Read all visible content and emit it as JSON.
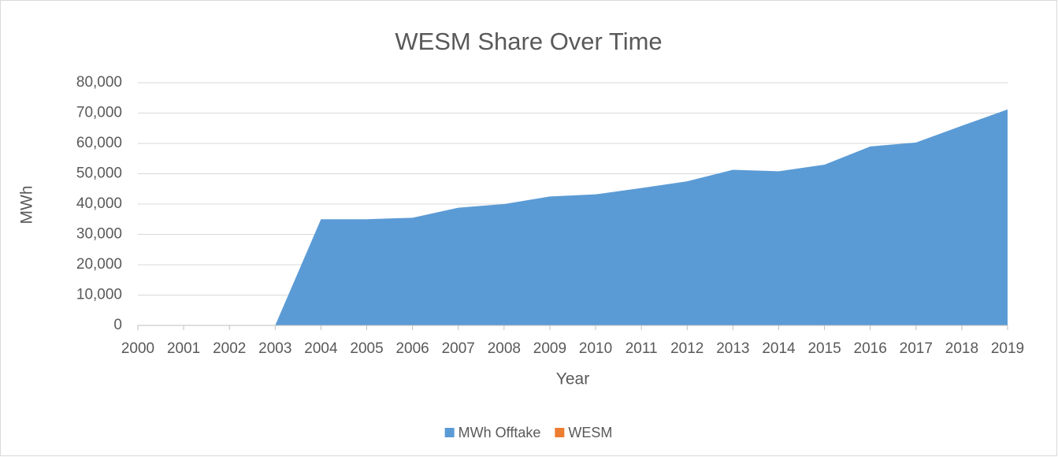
{
  "chart_data": {
    "type": "area",
    "stacked": true,
    "title": "WESM Share Over Time",
    "x_label": "Year",
    "y_label": "MWh",
    "categories": [
      "2000",
      "2001",
      "2002",
      "2003",
      "2004",
      "2005",
      "2006",
      "2007",
      "2008",
      "2009",
      "2010",
      "2011",
      "2012",
      "2013",
      "2014",
      "2015",
      "2016",
      "2017",
      "2018",
      "2019"
    ],
    "series": [
      {
        "name": "MWh Offtake",
        "color": "#5b9bd5",
        "values": [
          0,
          0,
          0,
          0,
          35000,
          35000,
          35500,
          38800,
          40000,
          42500,
          43200,
          45300,
          47500,
          51300,
          50800,
          53000,
          59000,
          60300,
          65800,
          71200
        ]
      },
      {
        "name": "WESM",
        "color": "#ed7d31",
        "values": [
          0,
          0,
          0,
          0,
          0,
          0,
          0,
          0,
          0,
          0,
          0,
          0,
          0,
          0,
          0,
          0,
          0,
          0,
          0,
          0
        ]
      }
    ],
    "ylim": [
      0,
      80000
    ],
    "yticks": [
      0,
      {
        "value": 10000,
        "label": "10,000"
      },
      {
        "value": 20000,
        "label": "20,000"
      },
      {
        "value": 30000,
        "label": "30,000"
      },
      {
        "value": 40000,
        "label": "40,000"
      },
      {
        "value": 50000,
        "label": "50,000"
      },
      {
        "value": 60000,
        "label": "60,000"
      },
      {
        "value": 70000,
        "label": "70,000"
      },
      {
        "value": 80000,
        "label": "80,000"
      }
    ],
    "grid": true,
    "legend": "bottom"
  }
}
